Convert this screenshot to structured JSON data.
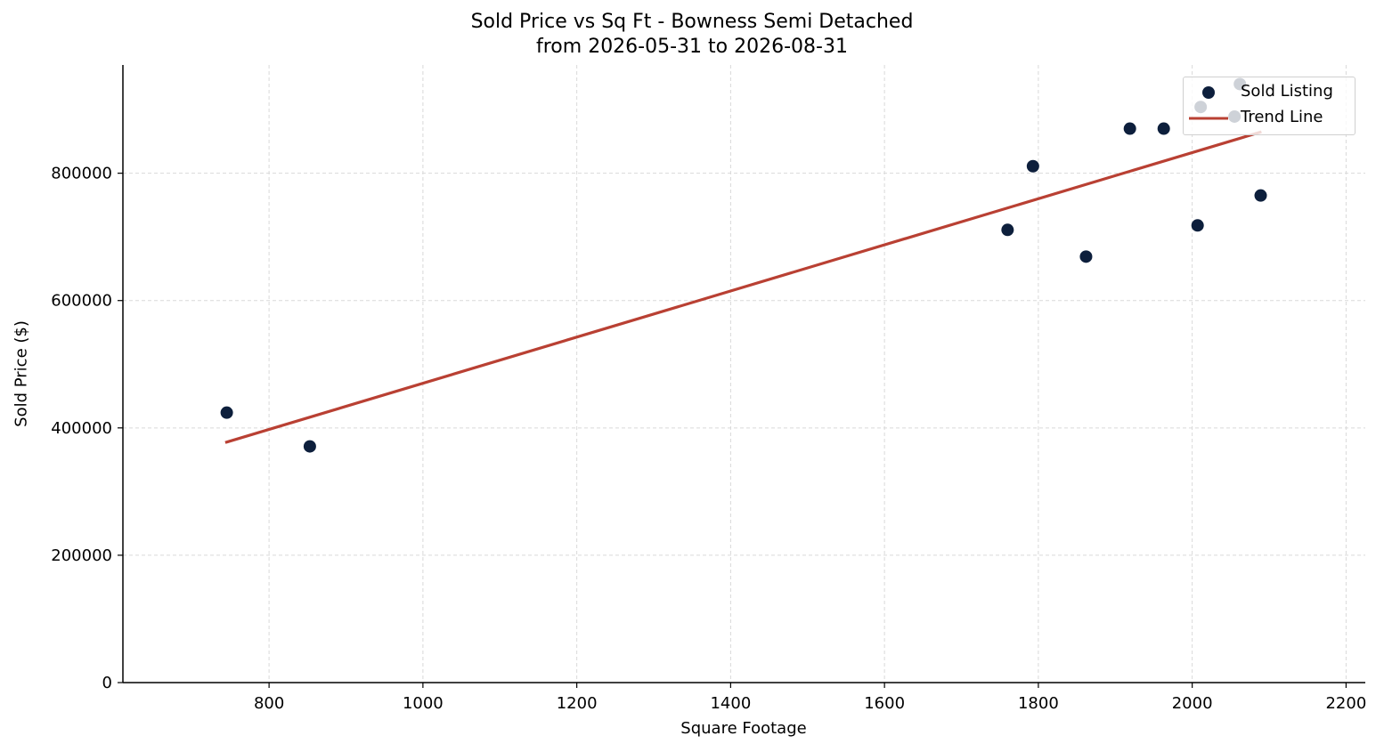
{
  "chart_data": {
    "type": "scatter",
    "title": "Sold Price vs Sq Ft - Bowness Semi Detached",
    "subtitle": "from 2026-05-31 to 2026-08-31",
    "xlabel": "Square Footage",
    "ylabel": "Sold Price ($)",
    "xlim": [
      610,
      2225
    ],
    "ylim": [
      0,
      970000
    ],
    "x_ticks": [
      800,
      1000,
      1200,
      1400,
      1600,
      1800,
      2000,
      2200
    ],
    "y_ticks": [
      0,
      200000,
      400000,
      600000,
      800000
    ],
    "grid": true,
    "legend_position": "top-right",
    "series": [
      {
        "name": "Sold Listing",
        "kind": "scatter",
        "color": "#0d1f3c",
        "points": [
          {
            "x": 745,
            "y": 424000
          },
          {
            "x": 853,
            "y": 371000
          },
          {
            "x": 1760,
            "y": 711000
          },
          {
            "x": 1793,
            "y": 811000
          },
          {
            "x": 1862,
            "y": 669000
          },
          {
            "x": 1919,
            "y": 870000
          },
          {
            "x": 1963,
            "y": 870000
          },
          {
            "x": 2007,
            "y": 718000
          },
          {
            "x": 2011,
            "y": 904000
          },
          {
            "x": 2055,
            "y": 889000
          },
          {
            "x": 2062,
            "y": 940000
          },
          {
            "x": 2089,
            "y": 765000
          }
        ]
      },
      {
        "name": "Trend Line",
        "kind": "line",
        "color": "#b94033",
        "points": [
          {
            "x": 743,
            "y": 377000
          },
          {
            "x": 2090,
            "y": 865000
          }
        ]
      }
    ]
  }
}
